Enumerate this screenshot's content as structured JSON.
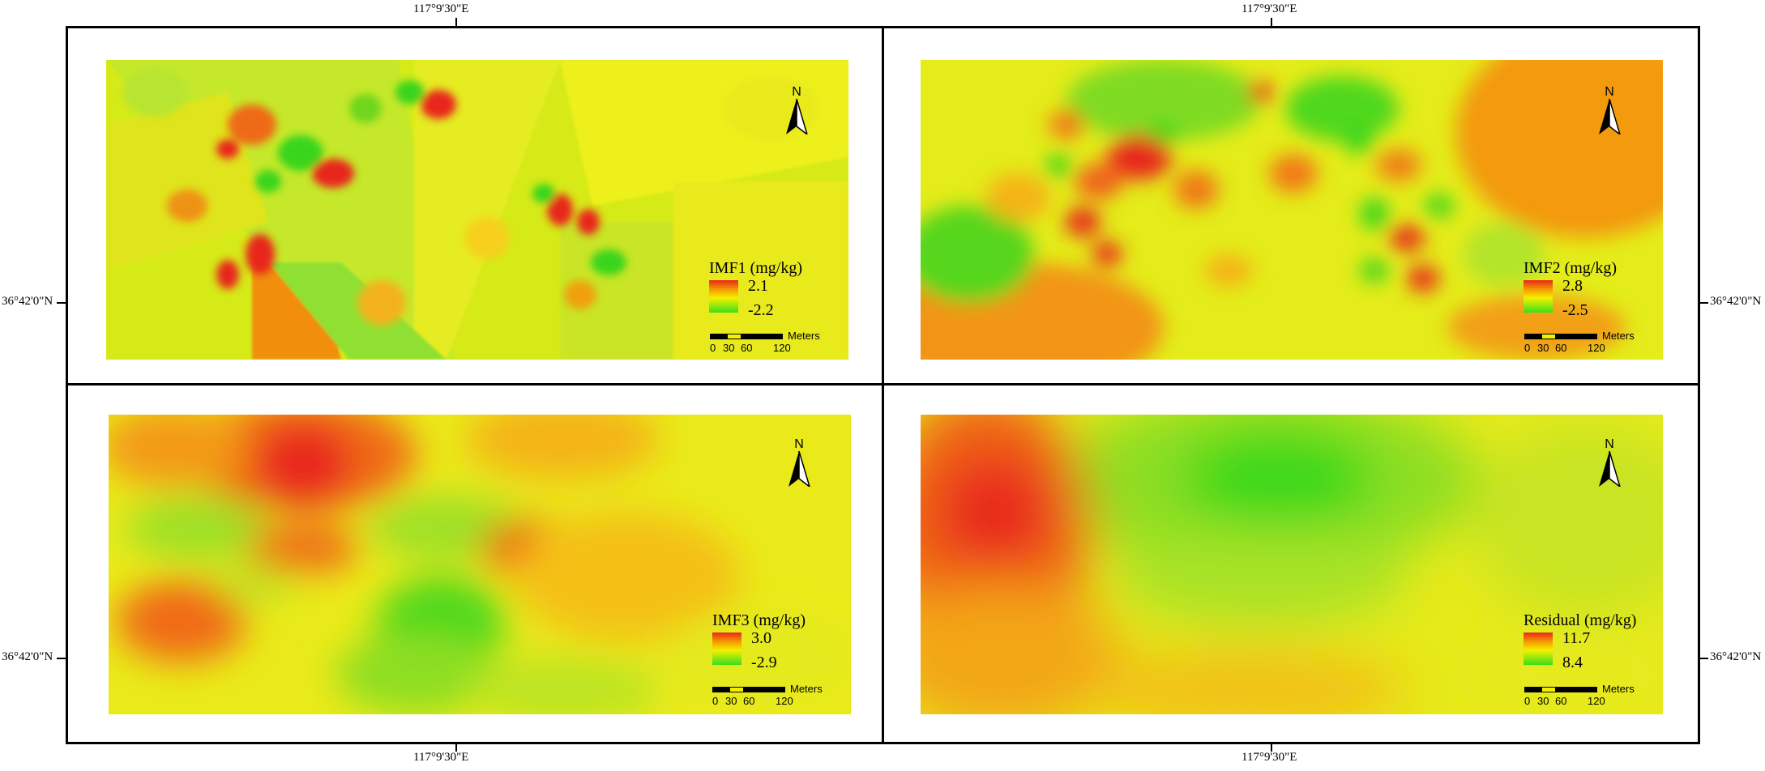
{
  "graticule": {
    "lon_label": "117°9'30\"E",
    "lat_label": "36°42'0\"N"
  },
  "scale": {
    "unit": "Meters",
    "ticks": [
      "0",
      "30",
      "60",
      "120"
    ]
  },
  "north_arrow": {
    "letter": "N"
  },
  "panels": [
    {
      "id": "imf1",
      "legend_title": "IMF1 (mg/kg)",
      "max": "2.1",
      "min": "-2.2"
    },
    {
      "id": "imf2",
      "legend_title": "IMF2 (mg/kg)",
      "max": "2.8",
      "min": "-2.5"
    },
    {
      "id": "imf3",
      "legend_title": "IMF3 (mg/kg)",
      "max": "3.0",
      "min": "-2.9"
    },
    {
      "id": "residual",
      "legend_title": "Residual (mg/kg)",
      "max": "11.7",
      "min": "8.4"
    }
  ],
  "colors": {
    "high": "#e8281a",
    "mid_high": "#f6a000",
    "mid": "#f4f000",
    "low": "#39e01a"
  }
}
